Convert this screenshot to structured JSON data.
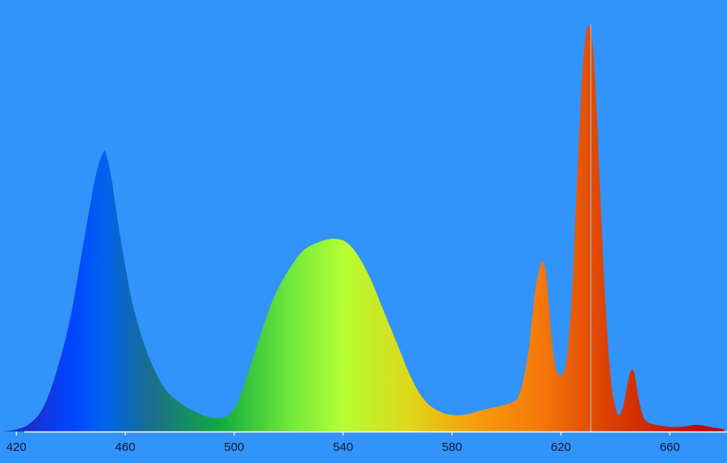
{
  "chart_data": {
    "type": "area",
    "title": "",
    "xlabel": "",
    "ylabel": "",
    "xlim": [
      414,
      681
    ],
    "ylim": [
      0,
      100
    ],
    "xticks": [
      420,
      460,
      500,
      540,
      580,
      620,
      660
    ],
    "xtick_labels": [
      "420",
      "460",
      "500",
      "540",
      "580",
      "620",
      "660"
    ],
    "grid": false,
    "legend": "none",
    "marker_line_x": 631,
    "colors": {
      "background": "#3293fb",
      "axis": "#ffffff",
      "marker_line": "#aaaaaa",
      "tick_text": "#0b1a33"
    },
    "spectrum_gradient": [
      {
        "x": 425,
        "color": "#1a2fd0"
      },
      {
        "x": 440,
        "color": "#0044ff"
      },
      {
        "x": 452,
        "color": "#0062ee"
      },
      {
        "x": 470,
        "color": "#1a6f8a"
      },
      {
        "x": 495,
        "color": "#12aa3e"
      },
      {
        "x": 520,
        "color": "#6fe83c"
      },
      {
        "x": 540,
        "color": "#b4ff33"
      },
      {
        "x": 565,
        "color": "#e0d61a"
      },
      {
        "x": 590,
        "color": "#f59a0a"
      },
      {
        "x": 612,
        "color": "#f57a0a"
      },
      {
        "x": 632,
        "color": "#e04a05"
      },
      {
        "x": 655,
        "color": "#cc2200"
      },
      {
        "x": 675,
        "color": "#c00000"
      }
    ],
    "series": [
      {
        "x": [
          415,
          420,
          425,
          430,
          435,
          440,
          444,
          448,
          450,
          452,
          453,
          455,
          457,
          460,
          463,
          467,
          471,
          475,
          480,
          485,
          490,
          494,
          497,
          500,
          503,
          507,
          511,
          515,
          520,
          525,
          530,
          535,
          538,
          541,
          545,
          550,
          555,
          560,
          565,
          570,
          575,
          580,
          585,
          590,
          595,
          598,
          601,
          604,
          606,
          608,
          609,
          610,
          611,
          612,
          613,
          614,
          615,
          616,
          617,
          618,
          619,
          620,
          621,
          622,
          623,
          624,
          625,
          626,
          627,
          628,
          629,
          630,
          631,
          632,
          633,
          634,
          635,
          636,
          637,
          638,
          639,
          640,
          641,
          642,
          643,
          644,
          645,
          646,
          647,
          648,
          649,
          650,
          651,
          652,
          653,
          655,
          658,
          662,
          666,
          670,
          675,
          680
        ],
        "values": [
          0,
          0.5,
          2,
          6,
          15,
          28,
          43,
          58,
          64,
          67.5,
          67,
          61,
          52,
          40,
          30,
          21,
          14.5,
          10,
          7,
          5,
          3.6,
          3.2,
          3.6,
          5.5,
          10,
          18,
          26,
          33,
          39,
          43.5,
          45.5,
          46.5,
          46.5,
          45.8,
          43,
          37,
          29,
          21,
          13,
          7.5,
          5,
          4,
          4.1,
          5,
          5.8,
          6.2,
          6.8,
          8,
          12,
          19,
          25,
          31,
          36,
          39,
          41,
          40,
          35,
          27,
          20,
          15.5,
          14,
          13.5,
          14.3,
          17,
          23,
          33,
          47,
          62,
          76,
          88,
          95,
          98,
          97,
          91,
          79,
          64,
          49,
          35,
          24,
          15,
          9,
          6,
          4,
          4.5,
          6.5,
          10,
          13.3,
          15,
          14,
          10,
          6.5,
          4,
          2.8,
          2.2,
          1.9,
          1.6,
          1.3,
          1.1,
          1.3,
          1.6,
          1.1,
          0.5
        ]
      }
    ]
  }
}
